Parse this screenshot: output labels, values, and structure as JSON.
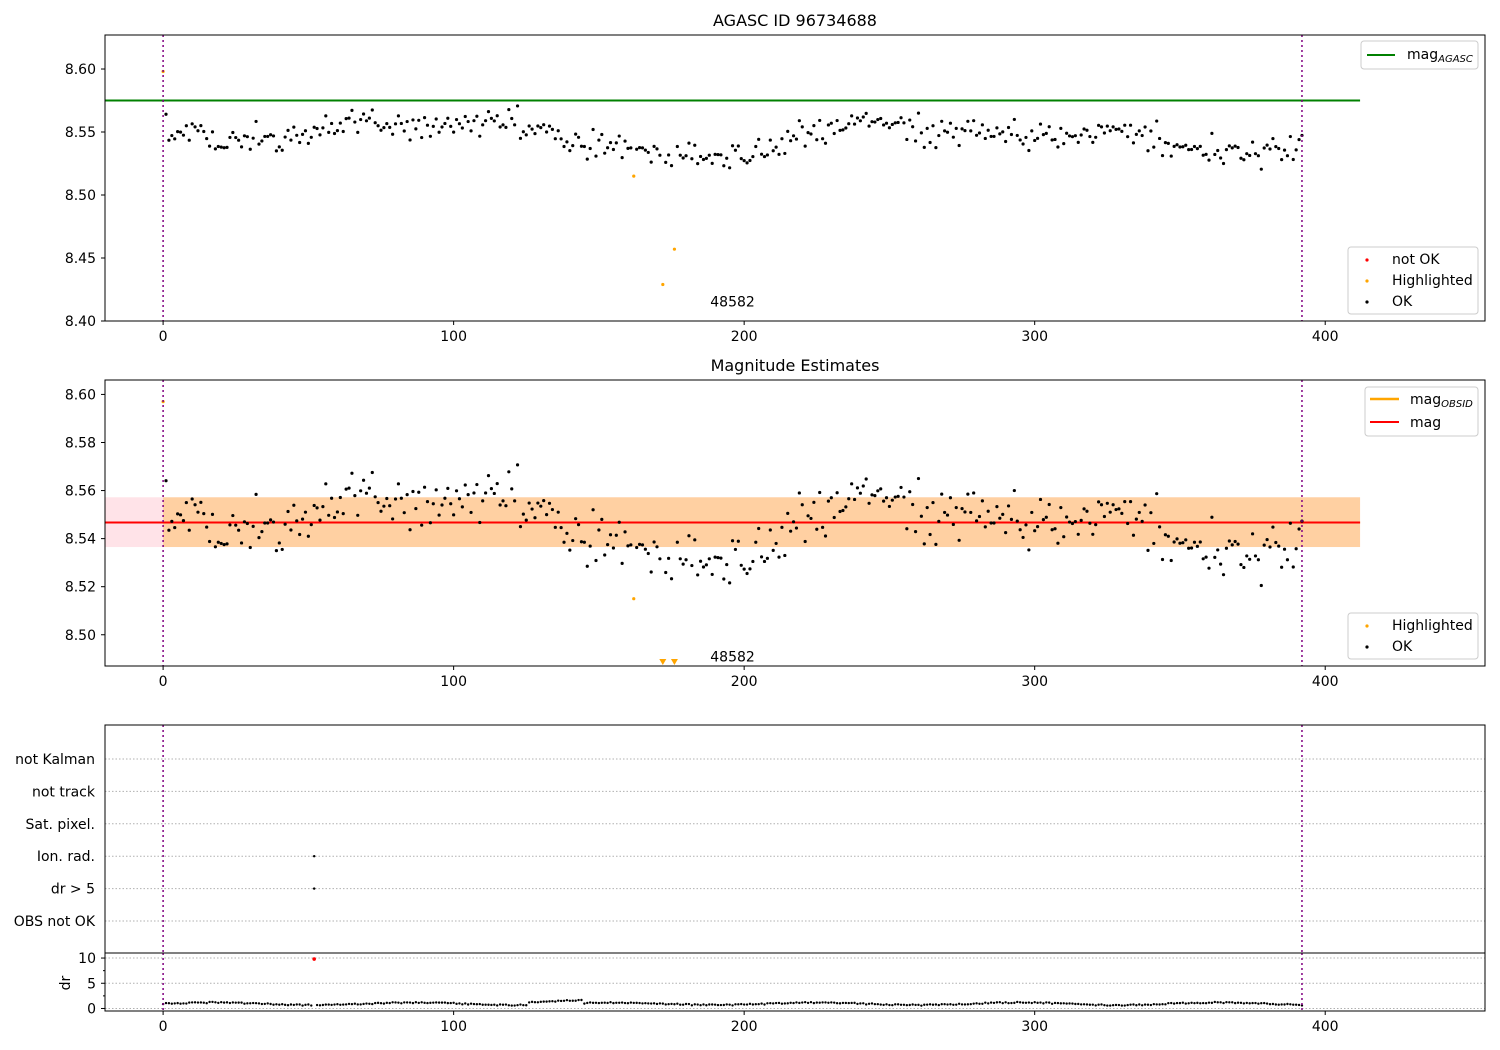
{
  "chart_data": [
    {
      "type": "scatter",
      "title": "AGASC ID 96734688",
      "xlabel": "",
      "ylabel": "",
      "xlim": [
        -20,
        455
      ],
      "ylim": [
        8.4,
        8.627
      ],
      "xticks": [
        0,
        100,
        200,
        300,
        400
      ],
      "yticks": [
        8.4,
        8.45,
        8.5,
        8.55,
        8.6
      ],
      "vlines": [
        0,
        392
      ],
      "hlines": [
        {
          "name": "mag_AGASC",
          "y": 8.575,
          "x_range": [
            -20,
            412
          ],
          "color": "#008000"
        }
      ],
      "annotation": {
        "text": "48582",
        "x": 196,
        "y": 8.41
      },
      "series": [
        {
          "name": "not OK",
          "color": "#ff0000",
          "x": [],
          "y": []
        },
        {
          "name": "Highlighted",
          "color": "#ffa500",
          "x": [
            0,
            162,
            172,
            176
          ],
          "y": [
            8.598,
            8.515,
            8.429,
            8.457
          ]
        },
        {
          "name": "OK",
          "color": "#000000",
          "x": [],
          "y": []
        }
      ],
      "legend": {
        "lines_label": "mag",
        "lines_sub": "AGASC",
        "points_position": "lower-right",
        "lines_position": "upper-right"
      }
    },
    {
      "type": "scatter",
      "title": "Magnitude Estimates",
      "xlabel": "",
      "ylabel": "",
      "xlim": [
        -20,
        455
      ],
      "ylim": [
        8.487,
        8.606
      ],
      "xticks": [
        0,
        100,
        200,
        300,
        400
      ],
      "yticks": [
        8.5,
        8.52,
        8.54,
        8.56,
        8.58,
        8.6
      ],
      "vlines": [
        0,
        392
      ],
      "hlines": [
        {
          "name": "mag_OBSID",
          "y": 8.5467,
          "x_range": [
            0,
            412
          ],
          "color": "#ffa500"
        },
        {
          "name": "mag",
          "y": 8.5467,
          "x_range": [
            -20,
            412
          ],
          "color": "#ff0000"
        }
      ],
      "bands": [
        {
          "ymin": 8.5365,
          "ymax": 8.5572,
          "x_range": [
            -20,
            412
          ],
          "color": "#ffc0cb"
        },
        {
          "ymin": 8.5365,
          "ymax": 8.5572,
          "x_range": [
            0,
            412
          ],
          "color": "#ffa500"
        }
      ],
      "out_of_range_markers": {
        "x": [
          172,
          176
        ],
        "color": "#ffa500"
      },
      "annotation": {
        "text": "48582",
        "x": 196,
        "y": 8.488
      },
      "series": [
        {
          "name": "Highlighted",
          "color": "#ffa500",
          "x": [
            0,
            162
          ],
          "y": [
            8.597,
            8.515
          ]
        },
        {
          "name": "OK",
          "color": "#000000",
          "x": [],
          "y": []
        }
      ],
      "legend": {
        "lines": [
          {
            "label": "mag",
            "sub": "OBSID",
            "color": "#ffa500"
          },
          {
            "label": "mag",
            "sub": "",
            "color": "#ff0000"
          }
        ],
        "points_position": "lower-right",
        "lines_position": "upper-right"
      }
    },
    {
      "type": "scatter",
      "title": "",
      "xlim": [
        -20,
        455
      ],
      "vlines": [
        0,
        392
      ],
      "flag_labels": [
        "not Kalman",
        "not track",
        "Sat. pixel.",
        "Ion. rad.",
        "dr > 5",
        "OBS not OK"
      ],
      "flags": [
        {
          "label": "Ion. rad.",
          "x": [
            52
          ]
        },
        {
          "label": "dr > 5",
          "x": [
            52
          ]
        }
      ]
    },
    {
      "type": "scatter",
      "title": "",
      "xlabel": "",
      "ylabel": "dr",
      "xlim": [
        -20,
        455
      ],
      "ylim": [
        -0.5,
        11
      ],
      "xticks": [
        0,
        100,
        200,
        300,
        400
      ],
      "yticks": [
        0,
        5,
        10
      ],
      "vlines": [
        0,
        392
      ],
      "series": [
        {
          "name": "dr",
          "color": "#000000",
          "x": [],
          "y": []
        },
        {
          "name": "dr > 5",
          "color": "#ff0000",
          "x": [
            52
          ],
          "y": [
            9.8
          ]
        }
      ]
    }
  ]
}
